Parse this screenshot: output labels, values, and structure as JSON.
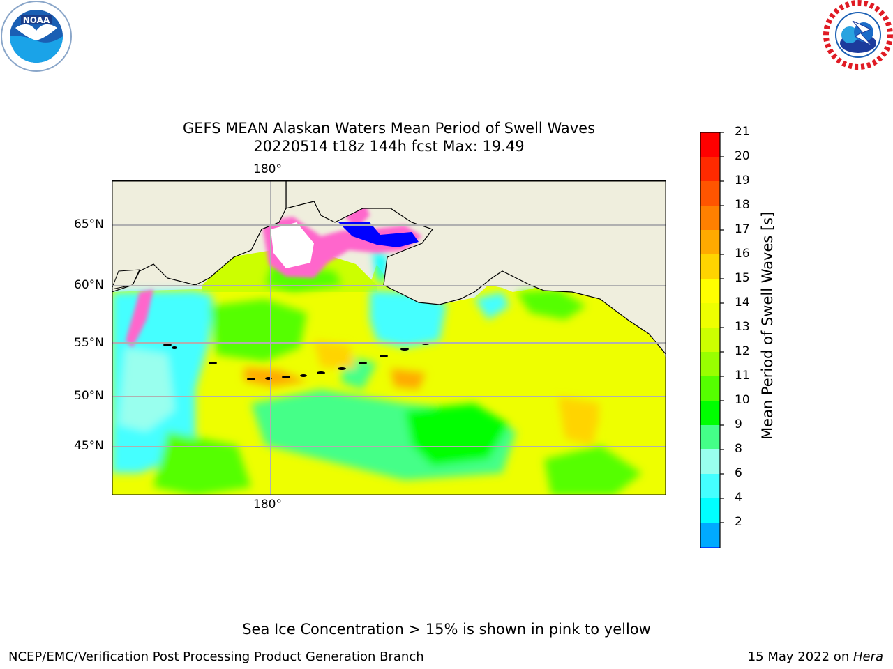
{
  "title": {
    "line1": "GEFS MEAN Alaskan Waters Mean Period of Swell Waves",
    "line2": "20220514 t18z 144h fcst   Max: 19.49"
  },
  "map": {
    "lon_tick_top": "180°",
    "lon_tick_bottom": "180°",
    "lat_ticks": [
      "65°N",
      "60°N",
      "55°N",
      "50°N",
      "45°N"
    ],
    "colors": {
      "land": "#efeedd",
      "grid": "#b0b0b0"
    }
  },
  "colorbar": {
    "label": "Mean Period of Swell Waves [s]",
    "ticks": [
      "21",
      "20",
      "19",
      "18",
      "17",
      "16",
      "15",
      "14",
      "13",
      "12",
      "11",
      "10",
      "9",
      "8",
      "6",
      "4",
      "2"
    ],
    "colors": [
      "#ff0000",
      "#ff2a00",
      "#ff5500",
      "#ff8000",
      "#ffaa00",
      "#ffd400",
      "#ffff00",
      "#eeff00",
      "#ccff00",
      "#99ff00",
      "#55ff00",
      "#00ff00",
      "#44ff88",
      "#99ffee",
      "#44ffff",
      "#00ffff",
      "#00aaff",
      "#0044ff"
    ],
    "extend_color": "#0000ff"
  },
  "footer": {
    "note": "Sea Ice Concentration > 15% is shown in pink to yellow",
    "credit_left": "NCEP/EMC/Verification Post Processing Product Generation Branch",
    "credit_right_date": "15 May 2022 on ",
    "credit_right_machine": "Hera"
  },
  "logos": {
    "noaa": "noaa-logo",
    "nws": "nws-logo"
  }
}
